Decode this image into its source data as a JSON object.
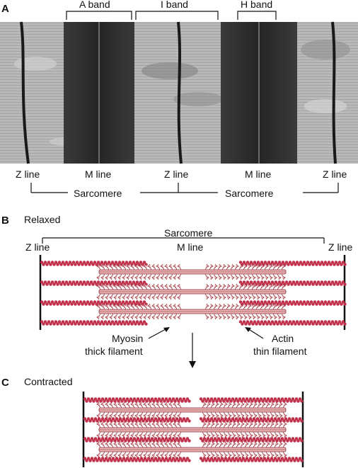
{
  "panel_a": {
    "letter": "A",
    "top_labels": {
      "a_band": "A band",
      "i_band": "I band",
      "h_band": "H band"
    },
    "bottom_labels": {
      "z1": "Z line",
      "m1": "M line",
      "z2": "Z line",
      "m2": "M line",
      "z3": "Z line"
    },
    "sarcomere_left": "Sarcomere",
    "sarcomere_right": "Sarcomere"
  },
  "panel_b": {
    "letter": "B",
    "state": "Relaxed",
    "sarcomere": "Sarcomere",
    "z_left": "Z line",
    "m_line": "M line",
    "z_right": "Z line",
    "myosin_1": "Myosin",
    "myosin_2": "thick filament",
    "actin_1": "Actin",
    "actin_2": "thin filament"
  },
  "panel_c": {
    "letter": "C",
    "state": "Contracted"
  },
  "colors": {
    "actin": "#c0304a",
    "myosin_fill": "#e9b4b4",
    "myosin_stroke": "#8a2a38",
    "micrograph_light": "#b8b8b8",
    "micrograph_dark": "#2e2e2e"
  }
}
